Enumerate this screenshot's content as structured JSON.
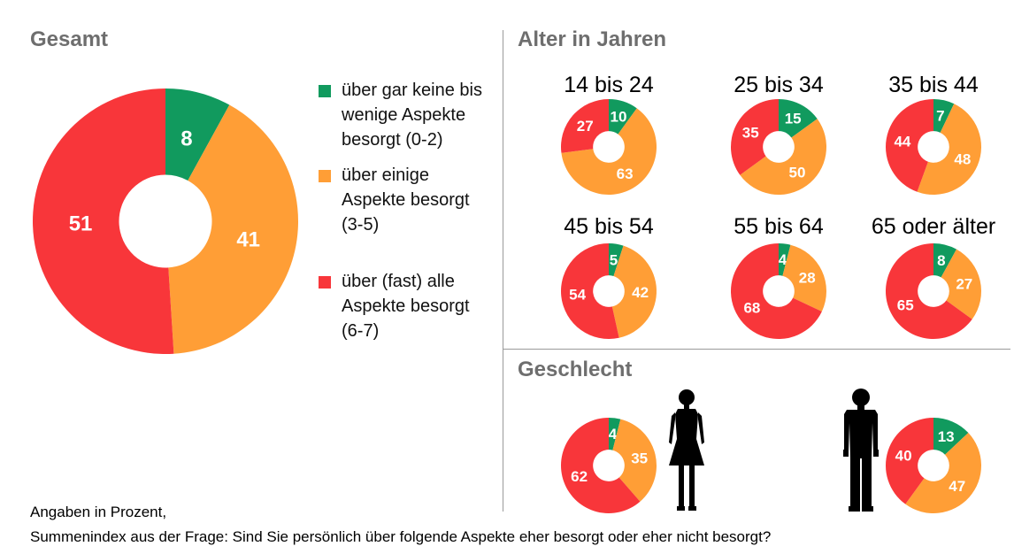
{
  "colors": {
    "green": "#119a5e",
    "orange": "#ff9e36",
    "red": "#f8363a"
  },
  "sections": {
    "total": "Gesamt",
    "age": "Alter in Jahren",
    "gender": "Geschlecht"
  },
  "legend": [
    {
      "key": "green",
      "text": "über gar keine bis wenige Aspekte besorgt (0-2)"
    },
    {
      "key": "orange",
      "text": "über einige Aspekte besorgt (3-5)"
    },
    {
      "key": "red",
      "text": "über (fast) alle Aspekte besorgt (6-7)"
    }
  ],
  "chart_data": [
    {
      "type": "pie",
      "id": "gesamt",
      "title": "Gesamt",
      "categories": [
        "über gar keine bis wenige Aspekte besorgt (0-2)",
        "über einige Aspekte besorgt (3-5)",
        "über (fast) alle Aspekte besorgt (6-7)"
      ],
      "values": [
        8,
        41,
        51
      ]
    },
    {
      "type": "pie",
      "id": "age-14-24",
      "title": "14 bis 24",
      "values": [
        10,
        63,
        27
      ]
    },
    {
      "type": "pie",
      "id": "age-25-34",
      "title": "25 bis 34",
      "values": [
        15,
        50,
        35
      ]
    },
    {
      "type": "pie",
      "id": "age-35-44",
      "title": "35 bis 44",
      "values": [
        7,
        48,
        44
      ]
    },
    {
      "type": "pie",
      "id": "age-45-54",
      "title": "45 bis 54",
      "values": [
        5,
        42,
        54
      ]
    },
    {
      "type": "pie",
      "id": "age-55-64",
      "title": "55 bis 64",
      "values": [
        4,
        28,
        68
      ]
    },
    {
      "type": "pie",
      "id": "age-65-plus",
      "title": "65 oder älter",
      "values": [
        8,
        27,
        65
      ]
    },
    {
      "type": "pie",
      "id": "female",
      "title": "",
      "values": [
        4,
        35,
        62
      ]
    },
    {
      "type": "pie",
      "id": "male",
      "title": "",
      "values": [
        13,
        47,
        40
      ]
    }
  ],
  "icons": {
    "female": "woman-silhouette-icon",
    "male": "man-silhouette-icon"
  },
  "footnote": {
    "line1": "Angaben in Prozent,",
    "line2": "Summenindex aus der Frage: Sind Sie persönlich über folgende Aspekte eher besorgt oder eher nicht besorgt?"
  }
}
